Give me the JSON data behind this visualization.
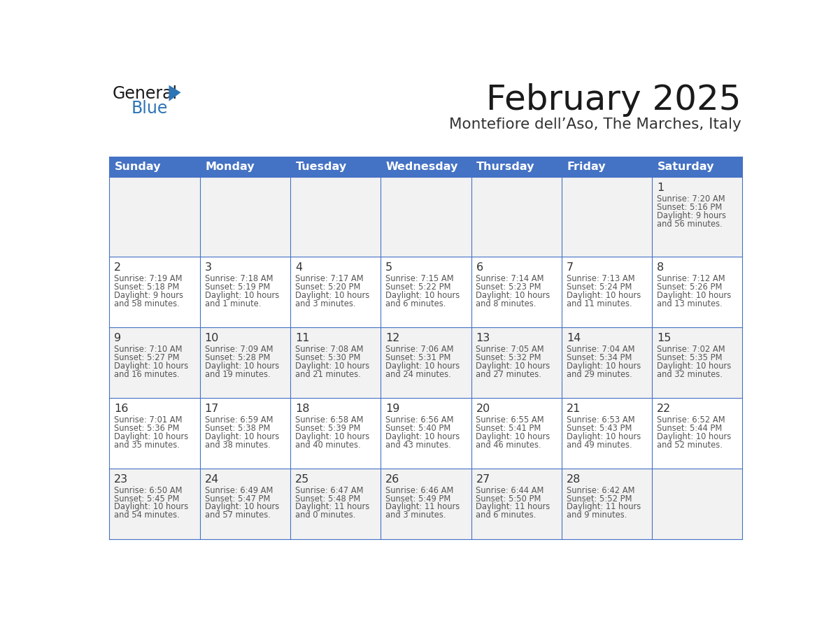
{
  "title": "February 2025",
  "subtitle": "Montefiore dell’Aso, The Marches, Italy",
  "days_of_week": [
    "Sunday",
    "Monday",
    "Tuesday",
    "Wednesday",
    "Thursday",
    "Friday",
    "Saturday"
  ],
  "header_bg": "#4472C4",
  "header_text": "#FFFFFF",
  "cell_bg_week1": "#F2F2F2",
  "cell_bg_week2": "#FFFFFF",
  "cell_bg_week3": "#F2F2F2",
  "cell_bg_week4": "#FFFFFF",
  "cell_bg_week5": "#F2F2F2",
  "cell_border": "#4472C4",
  "day_number_color": "#333333",
  "info_text_color": "#555555",
  "title_color": "#1a1a1a",
  "subtitle_color": "#333333",
  "logo_general_color": "#1a1a1a",
  "logo_blue_color": "#2E75B6",
  "logo_triangle_color": "#2E75B6",
  "weeks": [
    [
      null,
      null,
      null,
      null,
      null,
      null,
      {
        "day": 1,
        "sunrise": "7:20 AM",
        "sunset": "5:16 PM",
        "daylight": "9 hours and 56 minutes."
      }
    ],
    [
      {
        "day": 2,
        "sunrise": "7:19 AM",
        "sunset": "5:18 PM",
        "daylight": "9 hours and 58 minutes."
      },
      {
        "day": 3,
        "sunrise": "7:18 AM",
        "sunset": "5:19 PM",
        "daylight": "10 hours and 1 minute."
      },
      {
        "day": 4,
        "sunrise": "7:17 AM",
        "sunset": "5:20 PM",
        "daylight": "10 hours and 3 minutes."
      },
      {
        "day": 5,
        "sunrise": "7:15 AM",
        "sunset": "5:22 PM",
        "daylight": "10 hours and 6 minutes."
      },
      {
        "day": 6,
        "sunrise": "7:14 AM",
        "sunset": "5:23 PM",
        "daylight": "10 hours and 8 minutes."
      },
      {
        "day": 7,
        "sunrise": "7:13 AM",
        "sunset": "5:24 PM",
        "daylight": "10 hours and 11 minutes."
      },
      {
        "day": 8,
        "sunrise": "7:12 AM",
        "sunset": "5:26 PM",
        "daylight": "10 hours and 13 minutes."
      }
    ],
    [
      {
        "day": 9,
        "sunrise": "7:10 AM",
        "sunset": "5:27 PM",
        "daylight": "10 hours and 16 minutes."
      },
      {
        "day": 10,
        "sunrise": "7:09 AM",
        "sunset": "5:28 PM",
        "daylight": "10 hours and 19 minutes."
      },
      {
        "day": 11,
        "sunrise": "7:08 AM",
        "sunset": "5:30 PM",
        "daylight": "10 hours and 21 minutes."
      },
      {
        "day": 12,
        "sunrise": "7:06 AM",
        "sunset": "5:31 PM",
        "daylight": "10 hours and 24 minutes."
      },
      {
        "day": 13,
        "sunrise": "7:05 AM",
        "sunset": "5:32 PM",
        "daylight": "10 hours and 27 minutes."
      },
      {
        "day": 14,
        "sunrise": "7:04 AM",
        "sunset": "5:34 PM",
        "daylight": "10 hours and 29 minutes."
      },
      {
        "day": 15,
        "sunrise": "7:02 AM",
        "sunset": "5:35 PM",
        "daylight": "10 hours and 32 minutes."
      }
    ],
    [
      {
        "day": 16,
        "sunrise": "7:01 AM",
        "sunset": "5:36 PM",
        "daylight": "10 hours and 35 minutes."
      },
      {
        "day": 17,
        "sunrise": "6:59 AM",
        "sunset": "5:38 PM",
        "daylight": "10 hours and 38 minutes."
      },
      {
        "day": 18,
        "sunrise": "6:58 AM",
        "sunset": "5:39 PM",
        "daylight": "10 hours and 40 minutes."
      },
      {
        "day": 19,
        "sunrise": "6:56 AM",
        "sunset": "5:40 PM",
        "daylight": "10 hours and 43 minutes."
      },
      {
        "day": 20,
        "sunrise": "6:55 AM",
        "sunset": "5:41 PM",
        "daylight": "10 hours and 46 minutes."
      },
      {
        "day": 21,
        "sunrise": "6:53 AM",
        "sunset": "5:43 PM",
        "daylight": "10 hours and 49 minutes."
      },
      {
        "day": 22,
        "sunrise": "6:52 AM",
        "sunset": "5:44 PM",
        "daylight": "10 hours and 52 minutes."
      }
    ],
    [
      {
        "day": 23,
        "sunrise": "6:50 AM",
        "sunset": "5:45 PM",
        "daylight": "10 hours and 54 minutes."
      },
      {
        "day": 24,
        "sunrise": "6:49 AM",
        "sunset": "5:47 PM",
        "daylight": "10 hours and 57 minutes."
      },
      {
        "day": 25,
        "sunrise": "6:47 AM",
        "sunset": "5:48 PM",
        "daylight": "11 hours and 0 minutes."
      },
      {
        "day": 26,
        "sunrise": "6:46 AM",
        "sunset": "5:49 PM",
        "daylight": "11 hours and 3 minutes."
      },
      {
        "day": 27,
        "sunrise": "6:44 AM",
        "sunset": "5:50 PM",
        "daylight": "11 hours and 6 minutes."
      },
      {
        "day": 28,
        "sunrise": "6:42 AM",
        "sunset": "5:52 PM",
        "daylight": "11 hours and 9 minutes."
      },
      null
    ]
  ],
  "row_bg_colors": [
    "#F2F2F2",
    "#FFFFFF",
    "#F2F2F2",
    "#FFFFFF",
    "#F2F2F2"
  ]
}
